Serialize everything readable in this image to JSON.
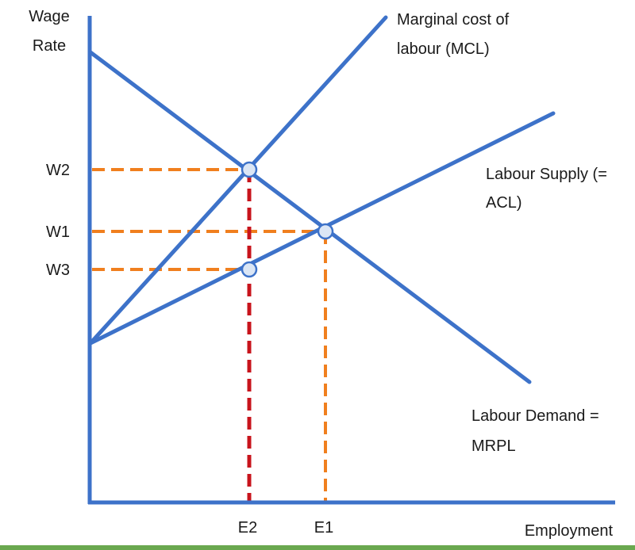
{
  "axes": {
    "y_label_line1": "Wage",
    "y_label_line2": "Rate",
    "x_label": "Employment"
  },
  "ticks": {
    "w2": "W2",
    "w1": "W1",
    "w3": "W3",
    "e2": "E2",
    "e1": "E1"
  },
  "curves": {
    "mcl_line1": "Marginal cost of",
    "mcl_line2": "labour (MCL)",
    "supply_line1": "Labour Supply (=",
    "supply_line2": "ACL)",
    "demand_line1": "Labour Demand =",
    "demand_line2": "MRPL"
  },
  "colors": {
    "curve": "#3d72c9",
    "guide_orange": "#f07f1e",
    "guide_red": "#c8141c",
    "footer": "#6aa84f"
  }
}
